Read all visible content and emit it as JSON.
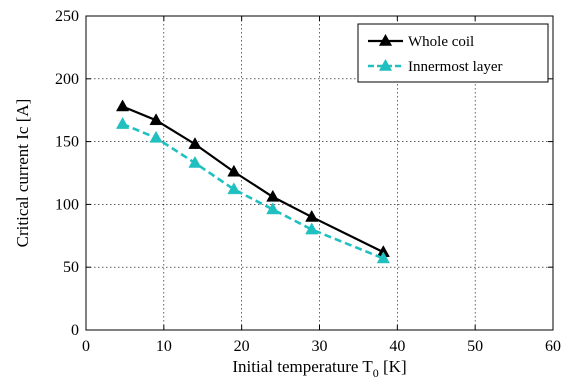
{
  "chart_data": {
    "type": "line",
    "xlabel_main": "Initial temperature T",
    "xlabel_sub": "0",
    "xlabel_unit": " [K]",
    "ylabel": "Critical current Ic [A]",
    "xlim": [
      0,
      60
    ],
    "ylim": [
      0,
      250
    ],
    "xticks": [
      0,
      10,
      20,
      30,
      40,
      50,
      60
    ],
    "yticks": [
      0,
      50,
      100,
      150,
      200,
      250
    ],
    "grid": true,
    "legend_position": "top-right",
    "series": [
      {
        "name": "Whole coil",
        "color": "#000000",
        "line_style": "solid",
        "marker": "triangle",
        "x": [
          4.7,
          9,
          14,
          19,
          24,
          29,
          38.2
        ],
        "y": [
          178,
          167,
          148,
          126,
          106,
          90,
          62
        ]
      },
      {
        "name": "Innermost layer",
        "color": "#20c0c0",
        "line_style": "dashed",
        "marker": "triangle",
        "x": [
          4.7,
          9,
          14,
          19,
          24,
          29,
          38.2
        ],
        "y": [
          164,
          153,
          133,
          112,
          96,
          80,
          57
        ]
      }
    ]
  }
}
